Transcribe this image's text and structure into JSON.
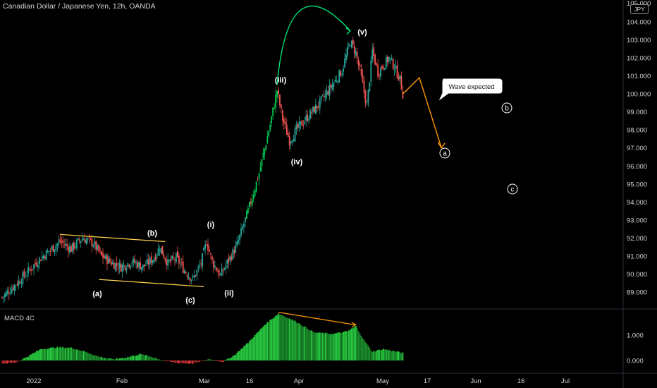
{
  "header": {
    "title": "Canadian Dollar / Japanese Yen, 12h, OANDA",
    "currency_badge": "JPY"
  },
  "macd": {
    "label": "MACD 4C"
  },
  "chart_data": [
    {
      "type": "candlestick",
      "title": "Canadian Dollar / Japanese Yen, 12h, OANDA",
      "y_axis": {
        "ticks": [
          "89.000",
          "90.000",
          "91.000",
          "92.000",
          "93.000",
          "94.000",
          "95.000",
          "96.000",
          "97.000",
          "98.000",
          "99.000",
          "100.000",
          "101.000",
          "102.000",
          "103.000",
          "104.000"
        ],
        "top_label": "105.000",
        "range": [
          88.0,
          105.0
        ]
      },
      "x_axis": {
        "ticks": [
          "2022",
          "Feb",
          "Mar",
          "16",
          "Apr",
          "May",
          "17",
          "Jun",
          "16",
          "Jul"
        ]
      },
      "price_path": [
        [
          0,
          88.7
        ],
        [
          12,
          89.6
        ],
        [
          28,
          90.9
        ],
        [
          42,
          91.8
        ],
        [
          50,
          91.4
        ],
        [
          58,
          92.0
        ],
        [
          66,
          91.7
        ],
        [
          72,
          91.0
        ],
        [
          80,
          90.6
        ],
        [
          86,
          90.4
        ],
        [
          94,
          90.7
        ],
        [
          102,
          90.4
        ],
        [
          110,
          90.9
        ],
        [
          114,
          91.5
        ],
        [
          120,
          90.6
        ],
        [
          126,
          90.9
        ],
        [
          132,
          90.2
        ],
        [
          138,
          89.7
        ],
        [
          144,
          90.6
        ],
        [
          148,
          91.8
        ],
        [
          152,
          90.7
        ],
        [
          158,
          89.9
        ],
        [
          162,
          90.5
        ],
        [
          170,
          91.6
        ],
        [
          178,
          93.5
        ],
        [
          186,
          95.6
        ],
        [
          194,
          98.3
        ],
        [
          199,
          100.2
        ],
        [
          203,
          98.6
        ],
        [
          208,
          97.4
        ],
        [
          214,
          98.1
        ],
        [
          222,
          98.8
        ],
        [
          230,
          99.5
        ],
        [
          238,
          100.4
        ],
        [
          246,
          101.3
        ],
        [
          252,
          102.9
        ],
        [
          256,
          102.3
        ],
        [
          260,
          100.9
        ],
        [
          264,
          99.3
        ],
        [
          268,
          102.4
        ],
        [
          272,
          101.2
        ],
        [
          276,
          101.6
        ],
        [
          280,
          102.0
        ],
        [
          284,
          101.5
        ],
        [
          288,
          100.8
        ],
        [
          290,
          100.0
        ]
      ],
      "projection": {
        "values": [
          100.0,
          100.9,
          97.0
        ],
        "label": "Wave expected"
      },
      "annotations": {
        "waves": [
          "(a)",
          "(b)",
          "(c)",
          "(i)",
          "(ii)",
          "(iii)",
          "(iv)",
          "(v)"
        ],
        "circled": [
          "a",
          "b",
          "c"
        ]
      },
      "colors": {
        "up": "#26a69a",
        "bright_up": "#00c853",
        "down": "#ef5350",
        "channel": "#ffd54f",
        "projection": "#ff9800",
        "arc": "#00e676"
      }
    },
    {
      "type": "histogram",
      "title": "MACD 4C",
      "y_axis": {
        "ticks": [
          "1.000",
          "0.000"
        ]
      },
      "series_path": [
        [
          0,
          -0.12
        ],
        [
          10,
          -0.08
        ],
        [
          20,
          0.2
        ],
        [
          28,
          0.45
        ],
        [
          40,
          0.52
        ],
        [
          50,
          0.5
        ],
        [
          60,
          0.35
        ],
        [
          70,
          0.15
        ],
        [
          80,
          0.05
        ],
        [
          90,
          0.12
        ],
        [
          100,
          0.25
        ],
        [
          108,
          0.15
        ],
        [
          118,
          -0.02
        ],
        [
          128,
          -0.1
        ],
        [
          138,
          -0.12
        ],
        [
          150,
          0.05
        ],
        [
          160,
          -0.05
        ],
        [
          168,
          0.2
        ],
        [
          178,
          0.7
        ],
        [
          190,
          1.4
        ],
        [
          200,
          1.85
        ],
        [
          212,
          1.55
        ],
        [
          226,
          1.1
        ],
        [
          240,
          1.05
        ],
        [
          250,
          1.15
        ],
        [
          256,
          1.35
        ],
        [
          262,
          0.8
        ],
        [
          268,
          0.35
        ],
        [
          276,
          0.45
        ],
        [
          290,
          0.3
        ]
      ]
    }
  ]
}
